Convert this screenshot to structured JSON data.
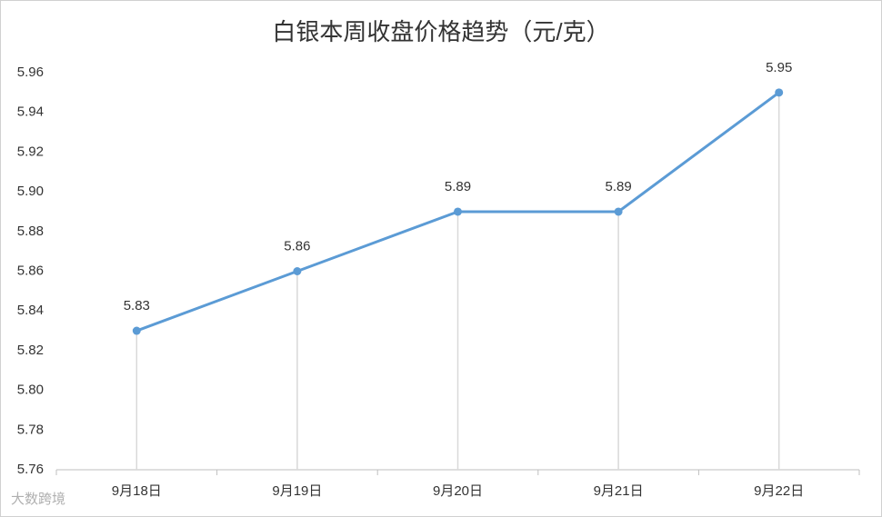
{
  "chart_data": {
    "type": "line",
    "title": "白银本周收盘价格趋势（元/克）",
    "categories": [
      "9月18日",
      "9月19日",
      "9月20日",
      "9月21日",
      "9月22日"
    ],
    "values": [
      5.83,
      5.86,
      5.89,
      5.89,
      5.95
    ],
    "color": "#5b9bd5",
    "ylim": [
      5.76,
      5.96
    ],
    "yticks": [
      5.76,
      5.78,
      {
        "value": 5.8,
        "label": "5.80"
      },
      5.82,
      5.84,
      5.86,
      5.88,
      {
        "value": 5.9,
        "label": "5.90"
      },
      5.92,
      5.94,
      5.96
    ],
    "drop_lines": true,
    "watermark": "大数跨境"
  }
}
